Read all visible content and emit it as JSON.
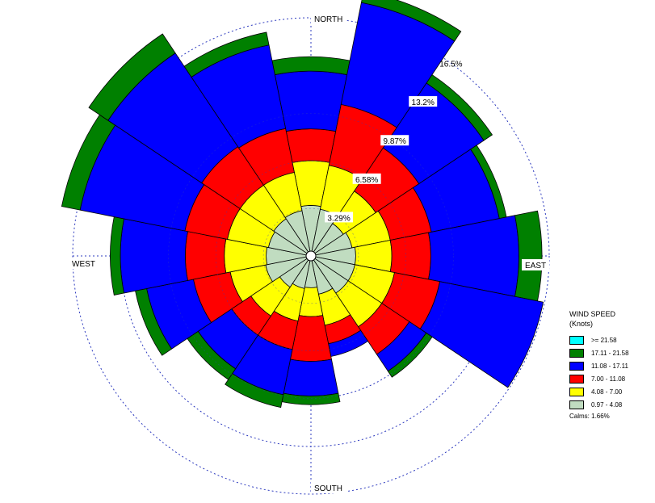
{
  "chart_data": {
    "type": "windrose",
    "directions": [
      "N",
      "NNE",
      "NE",
      "ENE",
      "E",
      "ESE",
      "SE",
      "SSE",
      "S",
      "SSW",
      "SW",
      "WSW",
      "W",
      "WNW",
      "NW",
      "NNW"
    ],
    "ring_labels": [
      "3.29%",
      "6.58%",
      "9.87%",
      "13.2%",
      "16.5%"
    ],
    "ring_values": [
      3.29,
      6.58,
      9.87,
      13.2,
      16.5
    ],
    "max_radius_value": 16.5,
    "compass": {
      "north": "NORTH",
      "east": "EAST",
      "south": "SOUTH",
      "west": "WEST"
    },
    "legend_title": [
      "WIND SPEED",
      "(Knots)"
    ],
    "bins": [
      {
        "label": ">= 21.58",
        "color": "#00ffff"
      },
      {
        "label": "17.11 - 21.58",
        "color": "#008000"
      },
      {
        "label": "11.08 - 17.11",
        "color": "#0000ff"
      },
      {
        "label": "7.00 - 11.08",
        "color": "#ff0000"
      },
      {
        "label": "4.08 - 7.00",
        "color": "#ffff00"
      },
      {
        "label": "0.97 - 4.08",
        "color": "#c0dcc0"
      }
    ],
    "calms": "Calms: 1.66%",
    "sectors": [
      [
        0,
        0,
        0,
        1,
        4,
        2.2,
        3.1,
        3.5
      ],
      [
        22.5,
        0,
        0,
        0.8,
        7.2,
        4.3,
        3.1,
        3.3
      ],
      [
        45,
        0,
        0,
        0.7,
        5.4,
        3.6,
        2.7,
        2.7
      ],
      [
        67.5,
        0,
        0,
        0.5,
        4.8,
        2.9,
        2.7,
        2.9
      ],
      [
        90,
        0,
        0,
        1.6,
        6.1,
        2.7,
        2.5,
        3.1
      ],
      [
        112.5,
        0,
        0,
        0,
        7.3,
        3.2,
        2.8,
        3.1
      ],
      [
        135,
        0,
        0,
        0.5,
        1.4,
        2.3,
        2.8,
        3.1
      ],
      [
        157.5,
        0,
        0,
        0,
        0.9,
        1.3,
        2.2,
        2.7
      ],
      [
        180,
        0,
        0,
        0.6,
        2.4,
        3.1,
        2,
        2.2
      ],
      [
        202.5,
        0,
        0,
        0.9,
        3.2,
        2,
        2.3,
        2.3
      ],
      [
        225,
        0,
        0,
        0.9,
        2.8,
        1.6,
        2.4,
        2.6
      ],
      [
        247.5,
        0,
        0,
        0.8,
        3.3,
        2.6,
        2.5,
        3.2
      ],
      [
        270,
        0,
        0,
        0.7,
        4.5,
        2.7,
        2.9,
        3.1
      ],
      [
        292.5,
        0,
        0,
        1.3,
        7.4,
        3,
        2.9,
        3
      ],
      [
        315,
        0,
        0,
        1.6,
        7.8,
        3.2,
        2.8,
        3.1
      ],
      [
        337.5,
        0,
        0,
        0.9,
        5.9,
        3.1,
        2.7,
        3.2
      ]
    ]
  }
}
